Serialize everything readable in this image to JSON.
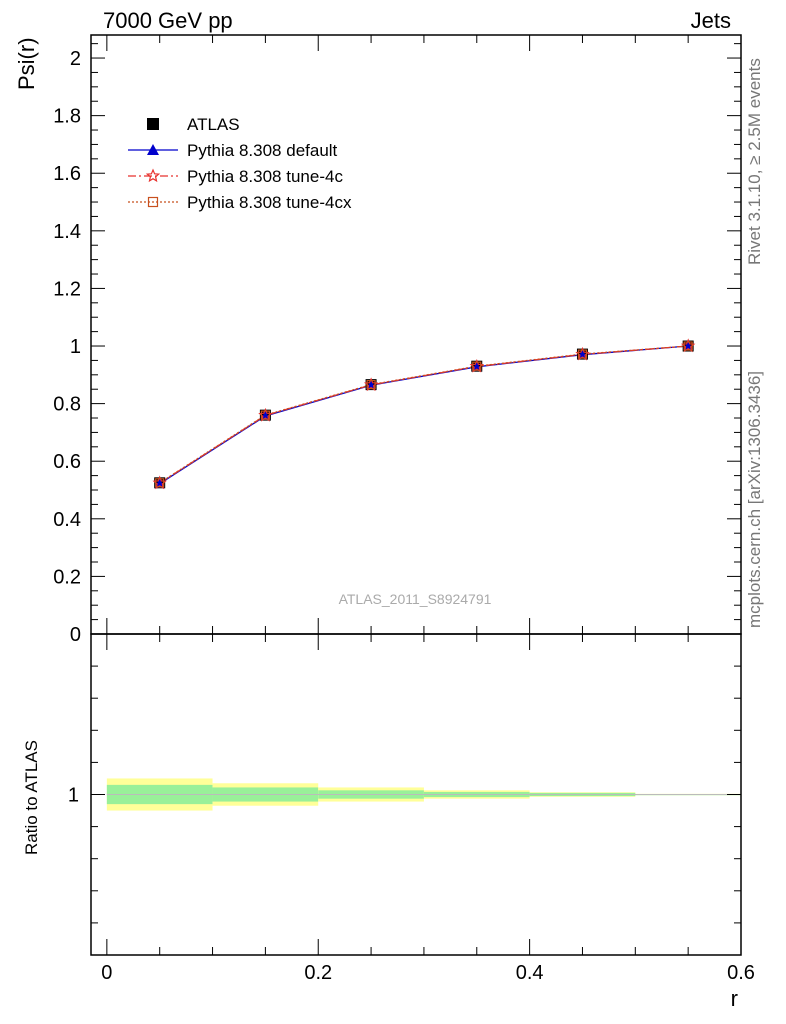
{
  "header": {
    "left": "7000 GeV pp",
    "right": "Jets"
  },
  "side_labels": {
    "rivet": "Rivet 3.1.10, ≥ 2.5M events",
    "source": "mcplots.cern.ch [arXiv:1306.3436]"
  },
  "watermark": "ATLAS_2011_S8924791",
  "colors": {
    "atlas": "#000000",
    "default": "#0000cc",
    "tune4c": "#e8322d",
    "tune4cx": "#c8501e",
    "band_inner": "#99f099",
    "band_outer": "#ffff99"
  },
  "chart_data": [
    {
      "type": "line",
      "ylabel": "Psi(r)",
      "xlim": [
        -0.015,
        0.6
      ],
      "ylim": [
        0,
        2.08
      ],
      "yticks": [
        0,
        0.2,
        0.4,
        0.6,
        0.8,
        1,
        1.2,
        1.4,
        1.6,
        1.8,
        2
      ],
      "yticklabels": [
        "0",
        "0.2",
        "0.4",
        "0.6",
        "0.8",
        "1",
        "1.2",
        "1.4",
        "1.6",
        "1.8",
        "2"
      ],
      "x": [
        0.05,
        0.15,
        0.25,
        0.35,
        0.45,
        0.55
      ],
      "legend": [
        "ATLAS",
        "Pythia 8.308 default",
        "Pythia 8.308 tune-4c",
        "Pythia 8.308 tune-4cx"
      ],
      "legend_placement": "top-left",
      "series": [
        {
          "name": "ATLAS",
          "values": [
            0.525,
            0.76,
            0.866,
            0.93,
            0.972,
            1.0
          ]
        },
        {
          "name": "Pythia 8.308 default",
          "values": [
            0.522,
            0.757,
            0.864,
            0.928,
            0.97,
            1.0
          ]
        },
        {
          "name": "Pythia 8.308 tune-4c",
          "values": [
            0.524,
            0.759,
            0.865,
            0.929,
            0.971,
            1.0
          ]
        },
        {
          "name": "Pythia 8.308 tune-4cx",
          "values": [
            0.525,
            0.76,
            0.866,
            0.93,
            0.972,
            1.0
          ]
        }
      ]
    },
    {
      "type": "area",
      "ylabel": "Ratio to ATLAS",
      "xlabel": "r",
      "xlim": [
        -0.015,
        0.6
      ],
      "ylim": [
        0.5,
        1.5
      ],
      "yticks": [
        1
      ],
      "yticklabels": [
        "1"
      ],
      "xticks": [
        0,
        0.2,
        0.4,
        0.6
      ],
      "xticklabels": [
        "0",
        "0.2",
        "0.4",
        "0.6"
      ],
      "bins": [
        [
          0,
          0.1
        ],
        [
          0.1,
          0.2
        ],
        [
          0.2,
          0.3
        ],
        [
          0.3,
          0.4
        ],
        [
          0.4,
          0.5
        ],
        [
          0.5,
          0.6
        ]
      ],
      "band_inner": [
        0.03,
        0.022,
        0.013,
        0.008,
        0.005,
        0.001
      ],
      "band_outer": [
        0.05,
        0.035,
        0.022,
        0.013,
        0.007,
        0.002
      ],
      "ratio": [
        1,
        1,
        1,
        1,
        1,
        1
      ]
    }
  ]
}
